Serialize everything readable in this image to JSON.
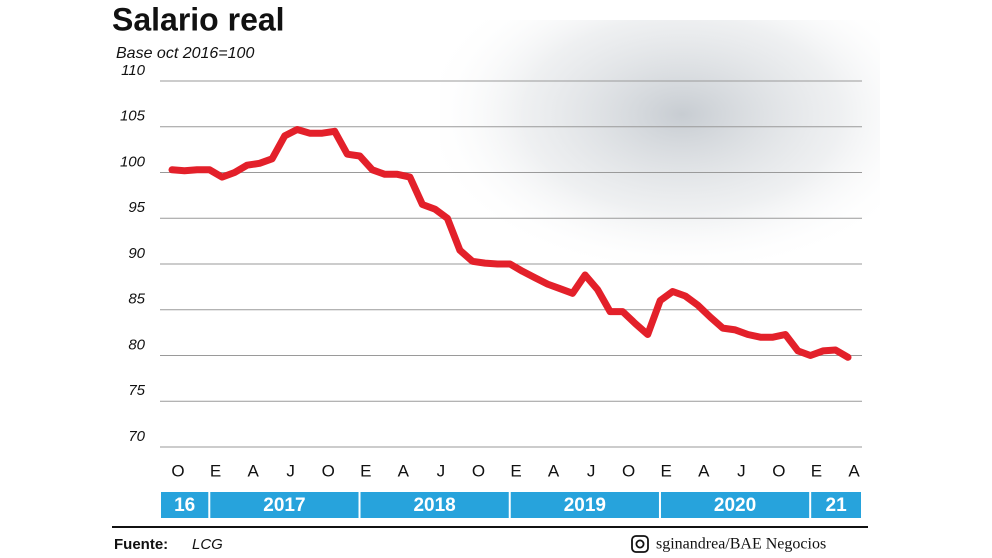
{
  "chart_data": {
    "type": "line",
    "title": "Salario real",
    "subtitle": "Base oct 2016=100",
    "categories": [
      "O",
      null,
      null,
      "E",
      null,
      null,
      "A",
      null,
      null,
      "J",
      null,
      null,
      "O",
      null,
      null,
      "E",
      null,
      null,
      "A",
      null,
      null,
      "J",
      null,
      null,
      "O",
      null,
      null,
      "E",
      null,
      null,
      "A",
      null,
      null,
      "J",
      null,
      null,
      "O",
      null,
      null,
      "E",
      null,
      null,
      "A",
      null,
      null,
      "J",
      null,
      null,
      "O",
      null,
      null,
      "E",
      null,
      null,
      "A"
    ],
    "years": [
      "16",
      "2017",
      "2018",
      "2019",
      "2020",
      "21"
    ],
    "series": [
      {
        "name": "Salario real",
        "color": "#e3202a",
        "values": [
          100.3,
          100.2,
          100.3,
          100.3,
          99.5,
          100.0,
          100.8,
          101.0,
          101.5,
          104.0,
          104.7,
          104.3,
          104.3,
          104.5,
          102.0,
          101.8,
          100.3,
          99.8,
          99.8,
          99.5,
          96.5,
          96.0,
          95.0,
          91.5,
          90.3,
          90.1,
          90.0,
          90.0,
          89.2,
          88.5,
          87.8,
          87.3,
          86.8,
          88.8,
          87.2,
          84.8,
          84.8,
          83.5,
          82.3,
          86.0,
          87.0,
          86.5,
          85.5,
          84.2,
          83.0,
          82.8,
          82.3,
          82.0,
          82.0,
          82.3,
          80.5,
          80.0,
          80.5,
          80.6,
          79.8
        ]
      }
    ],
    "ylim": [
      70,
      110
    ],
    "yticks": [
      70,
      75,
      80,
      85,
      90,
      95,
      100,
      105,
      110
    ],
    "grid": true,
    "source_label": "Fuente:",
    "source": "LCG",
    "credit": "sginandrea/BAE Negocios"
  }
}
